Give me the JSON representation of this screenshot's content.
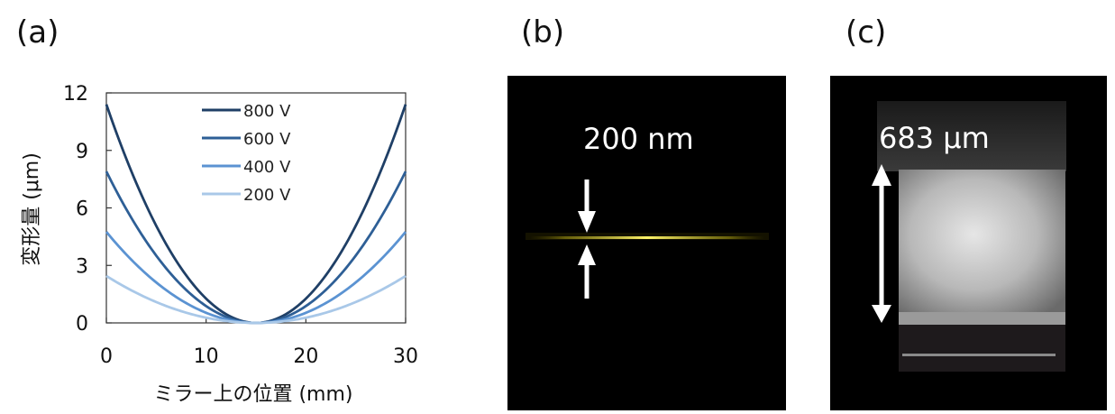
{
  "panels": {
    "a": {
      "label": "(a)"
    },
    "b": {
      "label": "(b)",
      "scale_text": "200 nm"
    },
    "c": {
      "label": "(c)",
      "scale_text": "683 μm"
    }
  },
  "chart_data": {
    "type": "line",
    "title": "",
    "xlabel": "ミラー上の位置 (mm)",
    "ylabel": "変形量 (μm)",
    "xlim": [
      0,
      30
    ],
    "ylim": [
      0,
      12
    ],
    "xticks": [
      "0",
      "10",
      "20",
      "30"
    ],
    "yticks": [
      "0",
      "3",
      "6",
      "9",
      "12"
    ],
    "grid": false,
    "legend_position": "top-center",
    "center_x": 15,
    "x": [
      0,
      2.5,
      5,
      7.5,
      10,
      12.5,
      15,
      17.5,
      20,
      22.5,
      25,
      27.5,
      30
    ],
    "series": [
      {
        "name": "800 V",
        "color": "#1f3f66",
        "values": [
          11.4,
          7.92,
          5.07,
          2.85,
          1.27,
          0.32,
          0,
          0.32,
          1.27,
          2.85,
          5.07,
          7.92,
          11.4
        ]
      },
      {
        "name": "600 V",
        "color": "#2e5f96",
        "values": [
          7.9,
          5.49,
          3.51,
          1.98,
          0.88,
          0.22,
          0,
          0.22,
          0.88,
          1.98,
          3.51,
          5.49,
          7.9
        ]
      },
      {
        "name": "400 V",
        "color": "#5b93d2",
        "values": [
          4.75,
          3.3,
          2.11,
          1.19,
          0.53,
          0.13,
          0,
          0.13,
          0.53,
          1.19,
          2.11,
          3.3,
          4.75
        ]
      },
      {
        "name": "200 V",
        "color": "#a9c8e8",
        "values": [
          2.45,
          1.7,
          1.09,
          0.61,
          0.27,
          0.07,
          0,
          0.07,
          0.27,
          0.61,
          1.09,
          1.7,
          2.45
        ]
      }
    ]
  }
}
